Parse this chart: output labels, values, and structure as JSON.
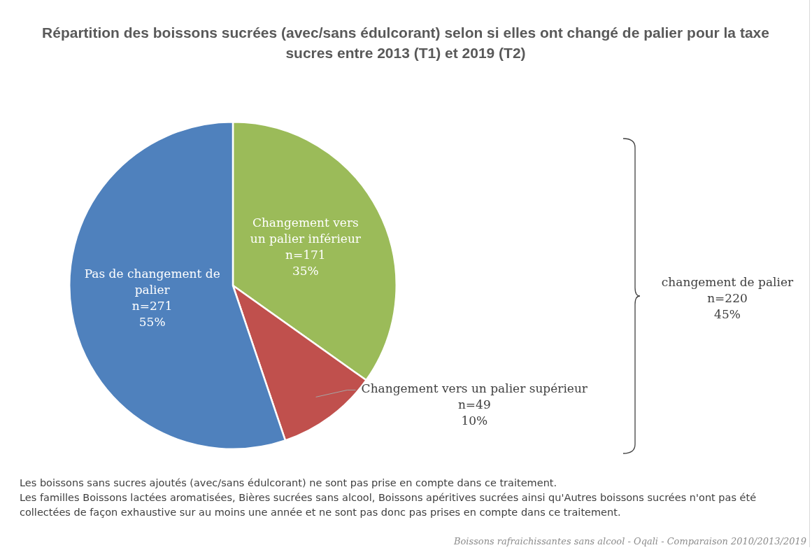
{
  "chart_data": {
    "type": "pie",
    "title": "Répartition des boissons sucrées (avec/sans édulcorant) selon si elles ont changé de palier pour la taxe sucres entre 2013 (T1) et 2019 (T2)",
    "categories": [
      "Changement vers un palier inférieur",
      "Changement vers un palier supérieur",
      "Pas de changement de palier"
    ],
    "values": [
      171,
      49,
      271
    ],
    "colors": [
      "#9bbb59",
      "#c0504d",
      "#4f81bd"
    ],
    "value_labels": [
      "n=171\n35%",
      "n=49\n10%",
      "n=271\n55%"
    ],
    "annotations": [
      "changement de palier\nn=220\n45%",
      "Les boissons sans sucres ajoutés (avec/sans édulcorant) ne sont pas prise en compte dans ce traitement.",
      "Les familles Boissons lactées aromatisées, Bières sucrées sans alcool, Boissons apéritives sucrées ainsi qu'Autres boissons sucrées n'ont pas été collectées de façon exhaustive sur au moins une année et ne sont pas donc pas prises en compte dans ce traitement.",
      "Boissons rafraichissantes sans alcool - Oqali - Comparaison 2010/2013/2019"
    ],
    "legend": false
  }
}
